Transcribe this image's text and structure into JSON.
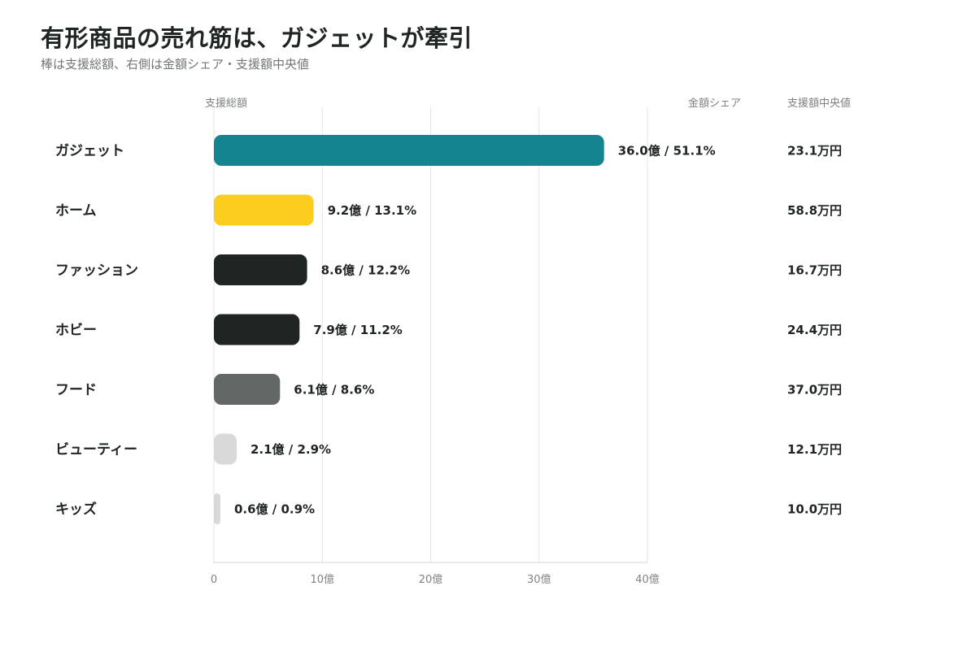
{
  "title": "有形商品の売れ筋は、ガジェットが牽引",
  "subtitle": "棒は支援総額、右側は金額シェア・支援額中央値",
  "columns": {
    "total": "支援総額",
    "share": "金額シェア",
    "median": "支援額中央値"
  },
  "chart_data": {
    "type": "bar",
    "orientation": "horizontal",
    "title": "有形商品の売れ筋は、ガジェットが牽引",
    "subtitle": "棒は支援総額、右側は金額シェア・支援額中央値",
    "xlabel": "支援総額",
    "xlim": [
      0,
      40
    ],
    "x_ticks": [
      0,
      10,
      20,
      30,
      40
    ],
    "x_tick_labels": [
      "0",
      "10億",
      "20億",
      "30億",
      "40億"
    ],
    "grid": true,
    "categories": [
      "ガジェット",
      "ホーム",
      "ファッション",
      "ホビー",
      "フード",
      "ビューティー",
      "キッズ"
    ],
    "series": [
      {
        "values": [
          36.0,
          9.2,
          8.6,
          7.9,
          6.1,
          2.1,
          0.6
        ],
        "colors": [
          "#148590",
          "#fbcd1f",
          "#1f2523",
          "#1f2523",
          "#636866",
          "#d9d9d9",
          "#d9d9d9"
        ]
      }
    ],
    "value_labels": [
      "36.0億 / 51.1%",
      "9.2億 / 13.1%",
      "8.6億 / 12.2%",
      "7.9億 / 11.2%",
      "6.1億 / 8.6%",
      "2.1億 / 2.9%",
      "0.6億 / 0.9%"
    ],
    "median_labels": [
      "23.1万円",
      "58.8万円",
      "16.7万円",
      "24.4万円",
      "37.0万円",
      "12.1万円",
      "10.0万円"
    ]
  }
}
